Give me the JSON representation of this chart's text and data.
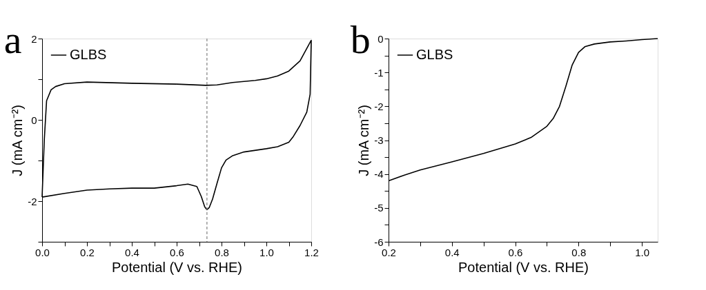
{
  "chart_data": [
    {
      "type": "line",
      "title": "a",
      "xlabel": "Potential (V vs. RHE)",
      "ylabel": "J (mA cm⁻²)",
      "xlim": [
        0,
        1.2
      ],
      "ylim": [
        -3,
        2
      ],
      "xticks": [
        {
          "value": 0,
          "label": "0.0"
        },
        {
          "value": 0.1,
          "label": null
        },
        0.2,
        {
          "value": 0.3,
          "label": null
        },
        0.4,
        {
          "value": 0.5,
          "label": null
        },
        0.6,
        {
          "value": 0.7,
          "label": null
        },
        0.8,
        {
          "value": 0.9,
          "label": null
        },
        {
          "value": 1.0,
          "label": "1.0"
        },
        {
          "value": 1.1,
          "label": null
        },
        1.2
      ],
      "yticks": [
        {
          "value": -3,
          "label": null
        },
        -2,
        {
          "value": -1,
          "label": null
        },
        0,
        {
          "value": 1,
          "label": null
        },
        2
      ],
      "legend": "top left",
      "grid": false,
      "ref_lines": [
        {
          "axis": "x",
          "value": 0.735,
          "color": "#808080",
          "line_style": "dashed"
        }
      ],
      "series": [
        {
          "name": "GLBS",
          "color": "#000000",
          "x": [
            0,
            0.01,
            0.02,
            0.04,
            0.06,
            0.1,
            0.2,
            0.4,
            0.6,
            0.73,
            0.78,
            0.85,
            0.95,
            1.0,
            1.05,
            1.1,
            1.15,
            1.2
          ],
          "values": [
            -1.9,
            -0.47,
            0.47,
            0.74,
            0.82,
            0.89,
            0.93,
            0.9,
            0.88,
            0.85,
            0.86,
            0.92,
            0.97,
            1.01,
            1.08,
            1.2,
            1.45,
            1.96
          ]
        },
        {
          "color": "#000000",
          "x": [
            0,
            0.1,
            0.2,
            0.3,
            0.4,
            0.5,
            0.6,
            0.65,
            0.69,
            0.71,
            0.725,
            0.735,
            0.745,
            0.76,
            0.78,
            0.8,
            0.82,
            0.85,
            0.9,
            1.0,
            1.05,
            1.1,
            1.12,
            1.15,
            1.18,
            1.195,
            1.2
          ],
          "values": [
            -1.9,
            -1.81,
            -1.73,
            -1.7,
            -1.68,
            -1.68,
            -1.62,
            -1.58,
            -1.64,
            -1.89,
            -2.14,
            -2.21,
            -2.16,
            -1.95,
            -1.56,
            -1.18,
            -0.99,
            -0.88,
            -0.79,
            -0.71,
            -0.66,
            -0.55,
            -0.41,
            -0.14,
            0.19,
            0.63,
            1.96
          ]
        }
      ]
    },
    {
      "type": "line",
      "title": "b",
      "xlabel": "Potential (V vs. RHE)",
      "ylabel": "J (mA cm⁻²)",
      "xlim": [
        0.2,
        1.05
      ],
      "ylim": [
        -6,
        0
      ],
      "xticks": [
        0.2,
        {
          "value": 0.3,
          "label": null
        },
        0.4,
        {
          "value": 0.5,
          "label": null
        },
        0.6,
        {
          "value": 0.7,
          "label": null
        },
        0.8,
        {
          "value": 0.9,
          "label": null
        },
        {
          "value": 1.0,
          "label": "1.0"
        }
      ],
      "yticks": [
        -6,
        {
          "value": -5.5,
          "label": null
        },
        -5,
        {
          "value": -4.5,
          "label": null
        },
        -4,
        {
          "value": -3.5,
          "label": null
        },
        -3,
        {
          "value": -2.5,
          "label": null
        },
        -2,
        {
          "value": -1.5,
          "label": null
        },
        -1,
        {
          "value": -0.5,
          "label": null
        },
        0
      ],
      "legend": "top left",
      "grid": false,
      "series": [
        {
          "name": "GLBS",
          "color": "#000000",
          "x": [
            0.2,
            0.25,
            0.3,
            0.4,
            0.5,
            0.6,
            0.65,
            0.7,
            0.72,
            0.74,
            0.76,
            0.78,
            0.8,
            0.82,
            0.85,
            0.9,
            0.95,
            1.0,
            1.05
          ],
          "values": [
            -4.2,
            -4.03,
            -3.88,
            -3.64,
            -3.39,
            -3.11,
            -2.92,
            -2.59,
            -2.36,
            -2.0,
            -1.41,
            -0.78,
            -0.41,
            -0.24,
            -0.16,
            -0.1,
            -0.07,
            -0.03,
            0
          ]
        }
      ]
    }
  ]
}
